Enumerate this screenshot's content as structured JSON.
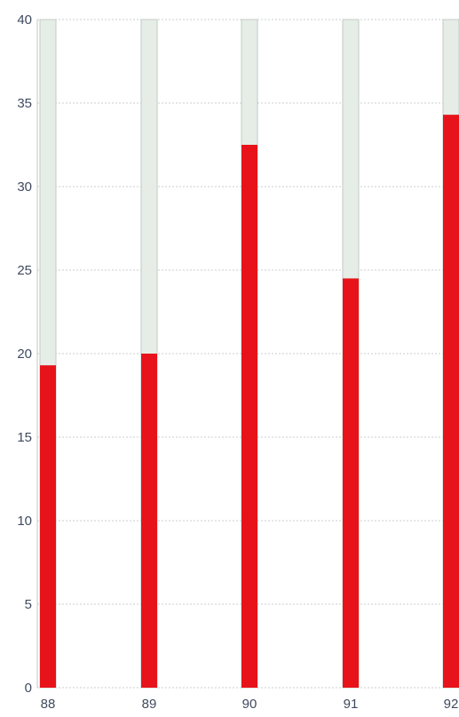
{
  "chart_data": {
    "type": "bar",
    "categories": [
      "88",
      "89",
      "90",
      "91",
      "92"
    ],
    "values": [
      19.3,
      20.0,
      32.5,
      24.5,
      34.3
    ],
    "ylim": [
      0,
      40
    ],
    "yticks": [
      0,
      5,
      10,
      15,
      20,
      25,
      30,
      35,
      40
    ],
    "grid": true,
    "colors": {
      "bar_fill": "#e8131a",
      "track_fill": "#e5ede6",
      "track_stroke": "#c3cac6",
      "grid": "#c9cdd1",
      "text": "#3f4a5e"
    }
  }
}
